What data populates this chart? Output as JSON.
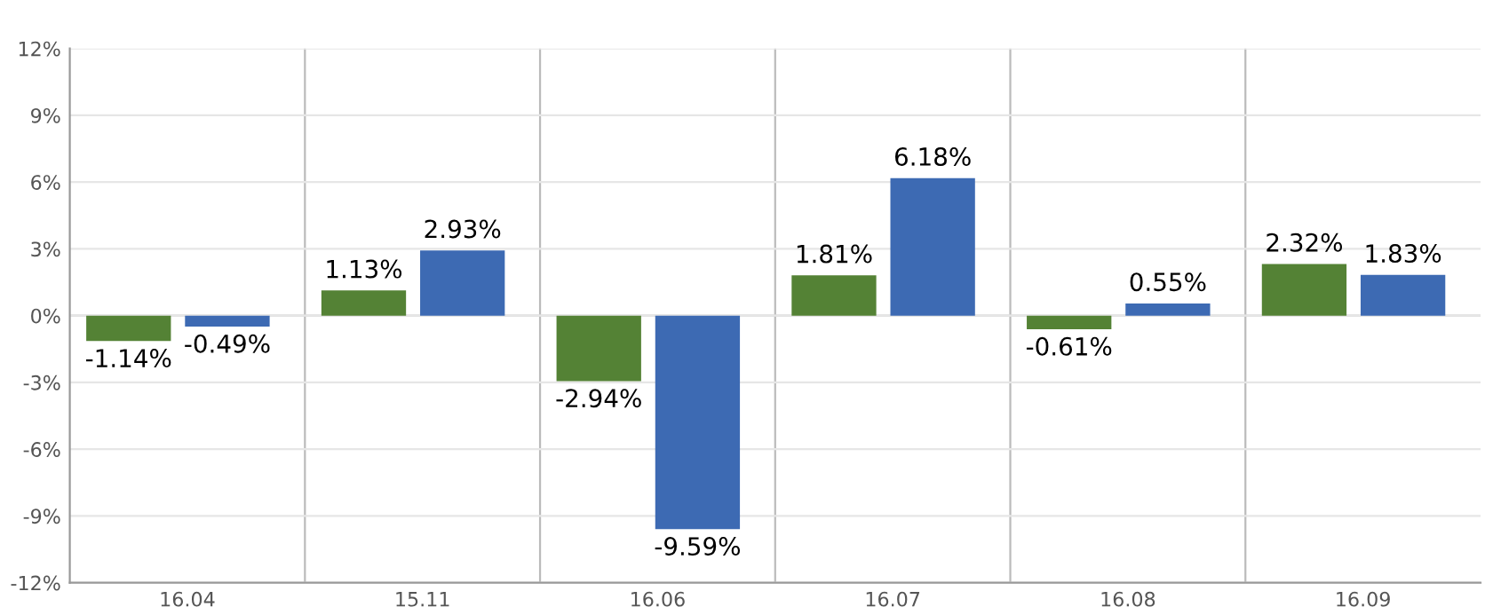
{
  "chart_data": {
    "type": "bar",
    "categories": [
      "16.04",
      "15.11",
      "16.06",
      "16.07",
      "16.08",
      "16.09"
    ],
    "series": [
      {
        "color": "#548235",
        "values": [
          -1.14,
          1.13,
          -2.94,
          1.81,
          -0.61,
          2.32
        ],
        "value_labels": [
          "-1.14%",
          "1.13%",
          "-2.94%",
          "1.81%",
          "-0.61%",
          "2.32%"
        ]
      },
      {
        "color": "#3d6ab3",
        "values": [
          -0.49,
          2.93,
          -9.59,
          6.18,
          0.55,
          1.83
        ],
        "value_labels": [
          "-0.49%",
          "2.93%",
          "-9.59%",
          "6.18%",
          "0.55%",
          "1.83%"
        ]
      }
    ],
    "ylim": [
      -12,
      12
    ],
    "yticks": [
      {
        "value": -12,
        "label": "-12%"
      },
      {
        "value": -9,
        "label": "-9%"
      },
      {
        "value": -6,
        "label": "-6%"
      },
      {
        "value": -3,
        "label": "-3%"
      },
      {
        "value": 0,
        "label": "0%"
      },
      {
        "value": 3,
        "label": "3%"
      },
      {
        "value": 6,
        "label": "6%"
      },
      {
        "value": 9,
        "label": "9%"
      },
      {
        "value": 12,
        "label": "12%"
      }
    ],
    "grid": true
  }
}
